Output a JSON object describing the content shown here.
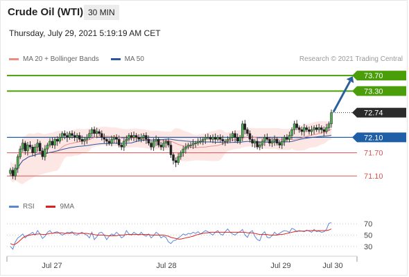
{
  "header": {
    "title": "Crude Oil (WTI)",
    "interval": "30 MIN",
    "datetime": "Thursday, July 29, 2021 5:19:19 AM CET"
  },
  "legend": {
    "ma20": "MA 20 + Bollinger Bands",
    "ma50": "MA 50",
    "copyright": "Research © 2021 Trading Central",
    "rsi": "RSI",
    "rsi_ma": "9MA"
  },
  "colors": {
    "green_level": "#4a9e0a",
    "blue_level": "#1f5fa8",
    "red_level": "#d9534f",
    "last_price": "#2b2b2b",
    "bollinger_fill": "#fde3e0",
    "ma20": "#f08b84",
    "ma50": "#2c57a0",
    "rsi": "#5b86d6",
    "rsi_ma": "#e02020",
    "arrow": "#2c5f9e"
  },
  "chart_data": [
    {
      "type": "candlestick",
      "name": "price",
      "ylim": [
        70.6,
        73.9
      ],
      "x_ticks": [
        "Jul 27",
        "Jul 28",
        "Jul 29",
        "Jul 30"
      ],
      "levels": [
        {
          "value": 73.7,
          "label": "73.70",
          "style": "resistance"
        },
        {
          "value": 73.3,
          "label": "73.30",
          "style": "resistance"
        },
        {
          "value": 72.74,
          "label": "72.74",
          "style": "last"
        },
        {
          "value": 72.1,
          "label": "72.10",
          "style": "pivot"
        },
        {
          "value": 71.7,
          "label": "71.70",
          "style": "support"
        },
        {
          "value": 71.1,
          "label": "71.10",
          "style": "support"
        }
      ],
      "close": [
        71.25,
        71.1,
        71.3,
        71.6,
        71.8,
        71.95,
        71.75,
        71.9,
        71.85,
        71.7,
        71.85,
        71.95,
        71.75,
        71.6,
        71.8,
        71.9,
        72.0,
        71.9,
        72.05,
        72.0,
        72.1,
        72.2,
        72.15,
        72.1,
        72.2,
        72.15,
        72.1,
        72.15,
        72.05,
        72.0,
        72.05,
        72.1,
        72.2,
        72.3,
        72.2,
        72.25,
        72.2,
        72.1,
        72.05,
        72.0,
        71.95,
        72.05,
        72.1,
        72.05,
        71.9,
        71.85,
        72.0,
        72.05,
        72.15,
        72.1,
        72.15,
        72.1,
        72.05,
        72.1,
        72.15,
        72.05,
        71.95,
        71.85,
        72.0,
        72.05,
        71.9,
        71.85,
        71.95,
        72.0,
        71.9,
        71.65,
        71.5,
        71.45,
        71.6,
        71.7,
        71.8,
        71.85,
        71.9,
        71.9,
        71.95,
        71.95,
        72.0,
        72.0,
        72.05,
        72.1,
        72.1,
        72.05,
        72.1,
        72.05,
        72.1,
        72.05,
        72.0,
        72.0,
        72.05,
        72.1,
        72.2,
        72.1,
        72.0,
        72.1,
        72.45,
        72.3,
        72.2,
        72.05,
        71.95,
        72.0,
        71.85,
        71.9,
        72.0,
        72.1,
        72.05,
        71.95,
        72.0,
        72.05,
        71.95,
        71.9,
        72.0,
        72.1,
        72.05,
        72.15,
        72.3,
        72.45,
        72.35,
        72.3,
        72.25,
        72.35,
        72.3,
        72.25,
        72.3,
        72.35,
        72.3,
        72.35,
        72.3,
        72.25,
        72.35,
        72.45,
        72.74
      ]
    },
    {
      "type": "line",
      "name": "RSI",
      "ylim": [
        15,
        85
      ],
      "y_ticks": [
        70,
        50,
        30
      ],
      "series": [
        {
          "name": "RSI",
          "values": [
            30,
            25,
            38,
            45,
            48,
            52,
            45,
            50,
            52,
            55,
            50,
            58,
            52,
            44,
            48,
            55,
            58,
            53,
            55,
            56,
            53,
            50,
            52,
            55,
            54,
            56,
            51,
            50,
            53,
            55,
            52,
            50,
            45,
            55,
            42,
            47,
            54,
            55,
            50,
            42,
            48,
            52,
            50,
            55,
            51,
            45,
            48,
            58,
            52,
            50,
            55,
            52,
            50,
            55,
            50,
            48,
            52,
            45,
            49,
            55,
            52,
            45,
            48,
            46,
            38,
            35,
            40,
            41,
            45,
            48,
            52,
            50,
            53,
            52,
            55,
            53,
            56,
            52,
            55,
            58,
            56,
            53,
            50,
            55,
            58,
            52,
            50,
            56,
            61,
            55,
            52,
            50,
            54,
            56,
            60,
            50,
            46,
            55,
            58,
            48,
            42,
            40,
            52,
            56,
            46,
            45,
            49,
            55,
            51,
            53,
            56,
            58,
            57,
            55,
            62,
            60,
            56,
            58,
            57,
            56,
            59,
            57,
            55,
            60,
            56,
            57,
            55,
            56,
            60,
            71,
            72
          ]
        },
        {
          "name": "9MA",
          "values": [
            35,
            33,
            34,
            37,
            41,
            45,
            48,
            49,
            50,
            51,
            51,
            52,
            52,
            51,
            51,
            52,
            53,
            53,
            54,
            54,
            54,
            54,
            53,
            53,
            53,
            54,
            54,
            53,
            53,
            53,
            53,
            53,
            52,
            52,
            51,
            50,
            50,
            50,
            50,
            49,
            49,
            49,
            49,
            49,
            50,
            50,
            50,
            51,
            51,
            51,
            51,
            51,
            51,
            51,
            51,
            51,
            51,
            50,
            50,
            50,
            50,
            50,
            50,
            49,
            48,
            46,
            45,
            44,
            43,
            43,
            44,
            45,
            46,
            47,
            48,
            50,
            51,
            52,
            53,
            54,
            54,
            55,
            55,
            55,
            55,
            55,
            55,
            55,
            55,
            55,
            55,
            55,
            55,
            55,
            55,
            55,
            54,
            54,
            54,
            53,
            52,
            51,
            51,
            51,
            51,
            50,
            50,
            50,
            50,
            51,
            51,
            52,
            53,
            54,
            55,
            56,
            57,
            57,
            57,
            57,
            58,
            58,
            58,
            58,
            58,
            58,
            58,
            58,
            58,
            59,
            61
          ]
        }
      ]
    }
  ]
}
